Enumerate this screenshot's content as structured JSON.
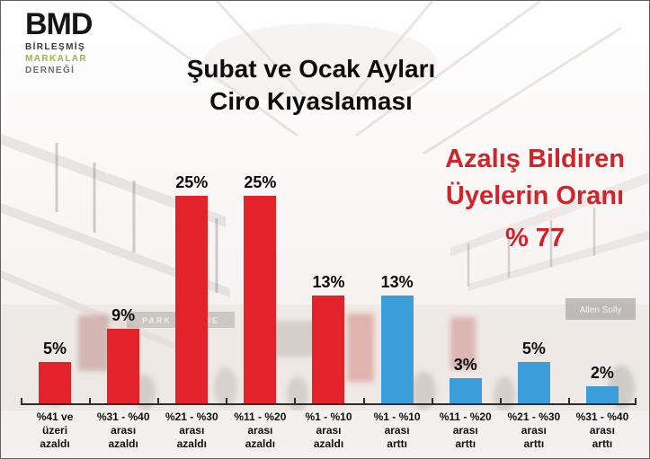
{
  "logo": {
    "acronym": "BMD",
    "line1": "BİRLEŞMİŞ",
    "line2": "MARKALAR",
    "line3": "DERNEĞİ"
  },
  "title": {
    "line1": "Şubat ve Ocak Ayları",
    "line2": "Ciro Kıyaslaması"
  },
  "annotation": {
    "line1": "Azalış Bildiren",
    "line2": "Üyelerin Oranı",
    "line3": "% 77"
  },
  "background_photo": {
    "description": "faded shopping mall interior photo",
    "signs": [
      "PARK AVENUE",
      "Allen Solly"
    ]
  },
  "colors": {
    "bar_decrease_red": "#e32329",
    "bar_increase_blue": "#3b9ed8",
    "annotation_red": "#d4222a",
    "logo_olive": "#a6b23b"
  },
  "chart_data": {
    "type": "bar",
    "title": "Şubat ve Ocak Ayları Ciro Kıyaslaması",
    "xlabel": "",
    "ylabel": "",
    "ylim": [
      0,
      27
    ],
    "grid": false,
    "legend": "none",
    "categories": [
      [
        "%41 ve",
        "üzeri",
        "azaldı"
      ],
      [
        "%31 - %40",
        "arası",
        "azaldı"
      ],
      [
        "%21 - %30",
        "arası",
        "azaldı"
      ],
      [
        "%11 - %20",
        "arası",
        "azaldı"
      ],
      [
        "%1 - %10",
        "arası",
        "azaldı"
      ],
      [
        "%1 - %10",
        "arası",
        "arttı"
      ],
      [
        "%11 - %20",
        "arası",
        "arttı"
      ],
      [
        "%21 - %30",
        "arası",
        "arttı"
      ],
      [
        "%31 - %40",
        "arası",
        "arttı"
      ]
    ],
    "values": [
      5,
      9,
      25,
      25,
      13,
      13,
      3,
      5,
      2
    ],
    "value_labels": [
      "5%",
      "9%",
      "25%",
      "25%",
      "13%",
      "13%",
      "3%",
      "5%",
      "2%"
    ],
    "bar_colors": [
      "#e32329",
      "#e32329",
      "#e32329",
      "#e32329",
      "#e32329",
      "#3b9ed8",
      "#3b9ed8",
      "#3b9ed8",
      "#3b9ed8"
    ]
  }
}
